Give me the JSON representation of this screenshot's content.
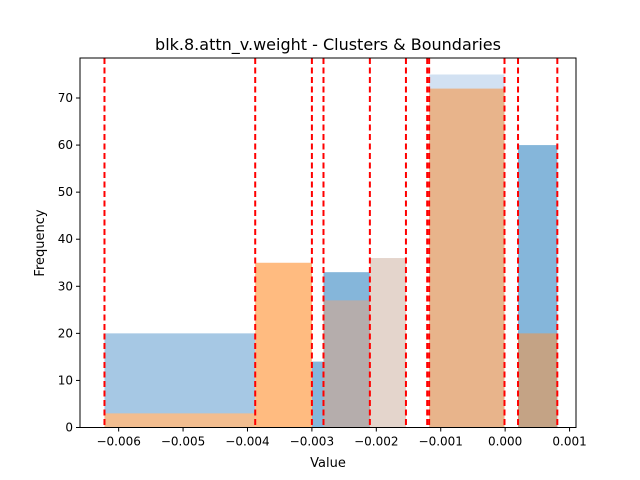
{
  "chart_data": {
    "type": "bar",
    "title": "blk.8.attn_v.weight - Clusters & Boundaries",
    "xlabel": "Value",
    "ylabel": "Frequency",
    "xlim": [
      -0.0066,
      0.0011
    ],
    "ylim": [
      0,
      78.5
    ],
    "x_ticks": [
      -0.006,
      -0.005,
      -0.004,
      -0.003,
      -0.002,
      -0.001,
      0.0,
      0.001
    ],
    "x_tick_labels": [
      "−0.006",
      "−0.005",
      "−0.004",
      "−0.003",
      "−0.002",
      "−0.001",
      "0.000",
      "0.001"
    ],
    "y_ticks": [
      0,
      10,
      20,
      30,
      40,
      50,
      60,
      70
    ],
    "y_tick_labels": [
      "0",
      "10",
      "20",
      "30",
      "40",
      "50",
      "60",
      "70"
    ],
    "grid": false,
    "legend": false,
    "clusters": [
      {
        "color": "#a6c8e4",
        "bins": [
          {
            "x0": -0.00622,
            "x1": -0.00388,
            "count": 20
          }
        ]
      },
      {
        "color": "#ffbb80",
        "bins": [
          {
            "x0": -0.00388,
            "x1": -0.003,
            "count": 35
          }
        ]
      },
      {
        "color": "#85b6da",
        "bins": [
          {
            "x0": -0.003,
            "x1": -0.00282,
            "count": 14
          },
          {
            "x0": -0.00282,
            "x1": -0.0021,
            "count": 33
          }
        ]
      },
      {
        "color": "#e4d5cc",
        "bins": [
          {
            "x0": -0.0021,
            "x1": -0.00154,
            "count": 36
          }
        ]
      },
      {
        "color": "#d2e1f2",
        "bins": [
          {
            "x0": -0.00118,
            "x1": -1e-05,
            "count": 75
          }
        ]
      },
      {
        "color": "#85b6da",
        "bins": [
          {
            "x0": 0.0002,
            "x1": 0.00081,
            "count": 60
          }
        ]
      },
      {
        "color": "#ffbb80",
        "alpha": 0.85,
        "bins": [
          {
            "x0": -0.00622,
            "x1": -0.00388,
            "count": 3
          }
        ]
      },
      {
        "color": "#b5adac",
        "bins": [
          {
            "x0": -0.00282,
            "x1": -0.0021,
            "count": 27
          }
        ]
      },
      {
        "color": "#e8b48b",
        "bins": [
          {
            "x0": -0.00118,
            "x1": -1e-05,
            "count": 72
          }
        ]
      },
      {
        "color": "#c4a385",
        "bins": [
          {
            "x0": 0.0002,
            "x1": 0.00081,
            "count": 20
          }
        ]
      }
    ],
    "boundaries": [
      -0.00622,
      -0.00388,
      -0.003,
      -0.00282,
      -0.0021,
      -0.00154,
      -0.00121,
      -0.00118,
      -1e-05,
      0.0002,
      0.00081
    ],
    "boundary_color": "#ff0000"
  }
}
